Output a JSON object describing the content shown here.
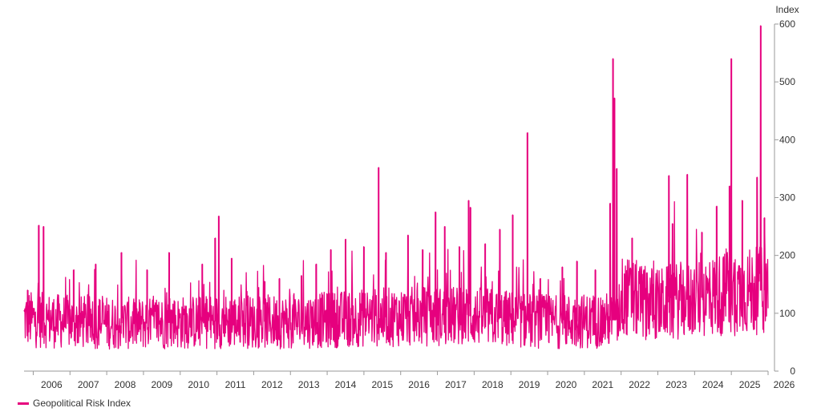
{
  "colors": {
    "series": "#e6007e",
    "axis": "#9a9a9a",
    "text": "#333333"
  },
  "chart_data": {
    "type": "line",
    "title": "",
    "xlabel": "",
    "ylabel": "Index",
    "ylim": [
      0,
      600
    ],
    "yticks": [
      "0",
      "100",
      "200",
      "300",
      "400",
      "500",
      "600"
    ],
    "xrange": [
      2005.75,
      2026.0
    ],
    "xticks": [
      "2006",
      "2007",
      "2008",
      "2009",
      "2010",
      "2011",
      "2012",
      "2013",
      "2014",
      "2015",
      "2016",
      "2017",
      "2018",
      "2019",
      "2020",
      "2021",
      "2022",
      "2023",
      "2024",
      "2025",
      "2026"
    ],
    "grid": false,
    "legend_position": "bottom-left",
    "series": [
      {
        "name": "Geopolitical Risk Index",
        "baseline": [
          {
            "x": 2005.75,
            "y": 90
          },
          {
            "x": 2007.0,
            "y": 85
          },
          {
            "x": 2009.0,
            "y": 82
          },
          {
            "x": 2011.0,
            "y": 86
          },
          {
            "x": 2013.0,
            "y": 85
          },
          {
            "x": 2015.0,
            "y": 92
          },
          {
            "x": 2016.0,
            "y": 94
          },
          {
            "x": 2018.0,
            "y": 95
          },
          {
            "x": 2020.0,
            "y": 85
          },
          {
            "x": 2021.9,
            "y": 88
          },
          {
            "x": 2022.0,
            "y": 130
          },
          {
            "x": 2023.0,
            "y": 115
          },
          {
            "x": 2023.4,
            "y": 120
          },
          {
            "x": 2024.0,
            "y": 125
          },
          {
            "x": 2025.0,
            "y": 135
          },
          {
            "x": 2025.95,
            "y": 140
          }
        ],
        "spikes": [
          {
            "x": 2005.85,
            "y": 140
          },
          {
            "x": 2006.15,
            "y": 252
          },
          {
            "x": 2006.28,
            "y": 250
          },
          {
            "x": 2007.1,
            "y": 175
          },
          {
            "x": 2007.7,
            "y": 185
          },
          {
            "x": 2008.4,
            "y": 205
          },
          {
            "x": 2009.1,
            "y": 175
          },
          {
            "x": 2009.7,
            "y": 205
          },
          {
            "x": 2010.6,
            "y": 185
          },
          {
            "x": 2010.95,
            "y": 230
          },
          {
            "x": 2011.05,
            "y": 268
          },
          {
            "x": 2011.4,
            "y": 195
          },
          {
            "x": 2012.3,
            "y": 155
          },
          {
            "x": 2012.7,
            "y": 160
          },
          {
            "x": 2013.3,
            "y": 165
          },
          {
            "x": 2013.7,
            "y": 185
          },
          {
            "x": 2014.1,
            "y": 210
          },
          {
            "x": 2014.5,
            "y": 228
          },
          {
            "x": 2015.0,
            "y": 215
          },
          {
            "x": 2015.4,
            "y": 352
          },
          {
            "x": 2015.6,
            "y": 205
          },
          {
            "x": 2016.2,
            "y": 235
          },
          {
            "x": 2016.6,
            "y": 210
          },
          {
            "x": 2016.95,
            "y": 275
          },
          {
            "x": 2017.2,
            "y": 250
          },
          {
            "x": 2017.6,
            "y": 215
          },
          {
            "x": 2017.85,
            "y": 295
          },
          {
            "x": 2017.9,
            "y": 283
          },
          {
            "x": 2018.3,
            "y": 220
          },
          {
            "x": 2018.7,
            "y": 245
          },
          {
            "x": 2019.05,
            "y": 270
          },
          {
            "x": 2019.45,
            "y": 412
          },
          {
            "x": 2019.8,
            "y": 160
          },
          {
            "x": 2020.4,
            "y": 180
          },
          {
            "x": 2020.8,
            "y": 190
          },
          {
            "x": 2021.3,
            "y": 175
          },
          {
            "x": 2021.7,
            "y": 290
          },
          {
            "x": 2021.78,
            "y": 540
          },
          {
            "x": 2021.82,
            "y": 472
          },
          {
            "x": 2021.88,
            "y": 350
          },
          {
            "x": 2022.3,
            "y": 230
          },
          {
            "x": 2022.7,
            "y": 170
          },
          {
            "x": 2023.3,
            "y": 338
          },
          {
            "x": 2023.4,
            "y": 255
          },
          {
            "x": 2023.8,
            "y": 340
          },
          {
            "x": 2024.2,
            "y": 240
          },
          {
            "x": 2024.6,
            "y": 285
          },
          {
            "x": 2024.95,
            "y": 320
          },
          {
            "x": 2025.0,
            "y": 540
          },
          {
            "x": 2025.3,
            "y": 295
          },
          {
            "x": 2025.7,
            "y": 335
          },
          {
            "x": 2025.8,
            "y": 597
          },
          {
            "x": 2025.9,
            "y": 265
          }
        ]
      }
    ]
  }
}
